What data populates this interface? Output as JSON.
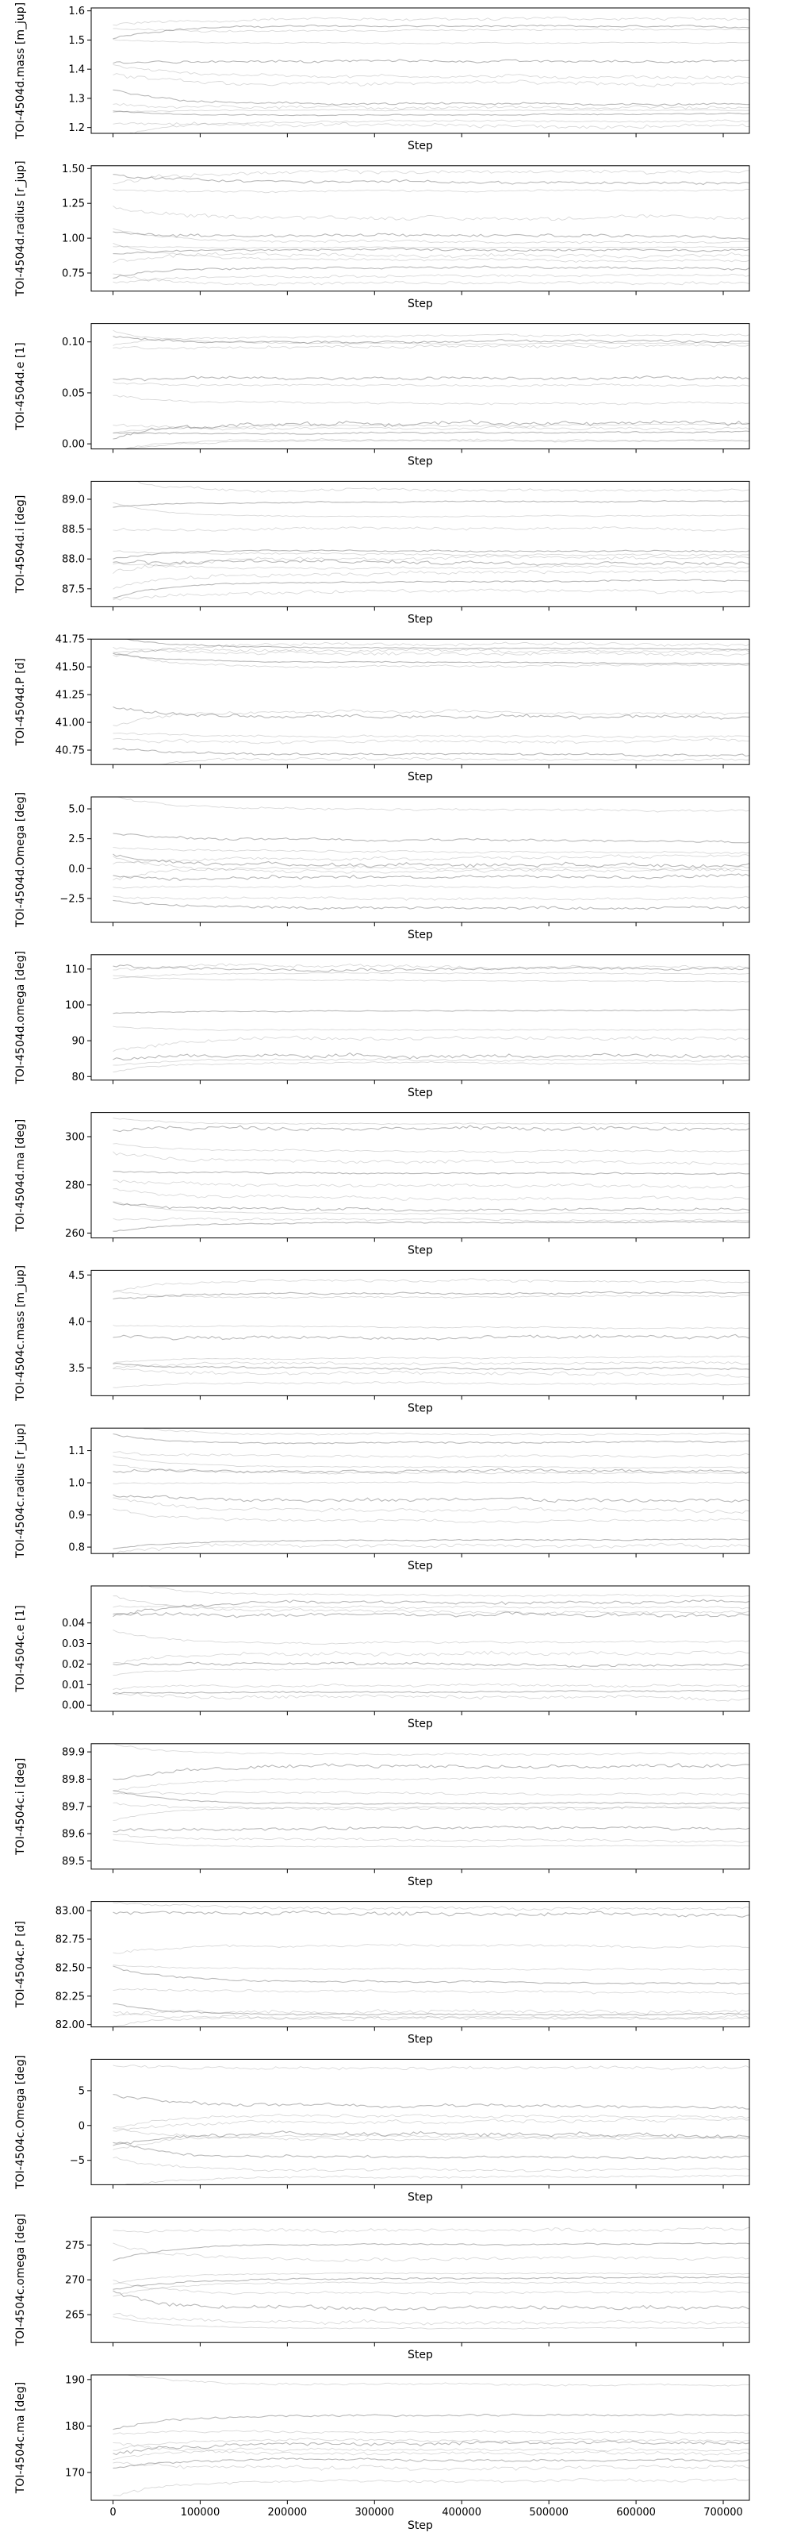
{
  "chart_data": {
    "type": "line",
    "style": {
      "trace_color": "#808080",
      "frame_color": "#000000",
      "background": "#ffffff"
    },
    "x_ticks": [
      0,
      100000,
      200000,
      300000,
      400000,
      500000,
      600000,
      700000
    ],
    "x_tick_labels": [
      "0",
      "100000",
      "200000",
      "300000",
      "400000",
      "500000",
      "600000",
      "700000"
    ],
    "xlim": [
      -25000,
      730000
    ],
    "panels": [
      {
        "ylabel": "TOI-4504d.mass [m_jup]",
        "xlabel": "Step",
        "ylim": [
          1.18,
          1.61
        ],
        "yticks": [
          1.2,
          1.3,
          1.4,
          1.5,
          1.6
        ],
        "ytick_labels": [
          "1.2",
          "1.3",
          "1.4",
          "1.5",
          "1.6"
        ],
        "levels": [
          1.57,
          1.55,
          1.53,
          1.49,
          1.43,
          1.38,
          1.35,
          1.28,
          1.27,
          1.26,
          1.24,
          1.22,
          1.21
        ]
      },
      {
        "ylabel": "TOI-4504d.radius [r_jup]",
        "xlabel": "Step",
        "ylim": [
          0.62,
          1.52
        ],
        "yticks": [
          0.75,
          1.0,
          1.25,
          1.5
        ],
        "ytick_labels": [
          "0.75",
          "1.00",
          "1.25",
          "1.50"
        ],
        "levels": [
          1.47,
          1.41,
          1.34,
          1.15,
          1.02,
          0.98,
          0.93,
          0.92,
          0.88,
          0.85,
          0.8,
          0.72,
          0.67
        ]
      },
      {
        "ylabel": "TOI-4504d.e [1]",
        "xlabel": "Step",
        "ylim": [
          -0.005,
          0.118
        ],
        "yticks": [
          0.0,
          0.05,
          0.1
        ],
        "ytick_labels": [
          "0.00",
          "0.05",
          "0.10"
        ],
        "levels": [
          0.105,
          0.1,
          0.098,
          0.095,
          0.065,
          0.058,
          0.04,
          0.02,
          0.017,
          0.015,
          0.01,
          0.005,
          0.002
        ]
      },
      {
        "ylabel": "TOI-4504d.i [deg]",
        "xlabel": "Step",
        "ylim": [
          87.2,
          89.3
        ],
        "yticks": [
          87.5,
          88.0,
          88.5,
          89.0
        ],
        "ytick_labels": [
          "87.5",
          "88.0",
          "88.5",
          "89.0"
        ],
        "levels": [
          89.15,
          88.95,
          88.7,
          88.5,
          88.15,
          88.1,
          88.0,
          87.95,
          87.85,
          87.75,
          87.6,
          87.45
        ]
      },
      {
        "ylabel": "TOI-4504d.P [d]",
        "xlabel": "Step",
        "ylim": [
          40.62,
          41.75
        ],
        "yticks": [
          40.75,
          41.0,
          41.25,
          41.5,
          41.75
        ],
        "ytick_labels": [
          "40.75",
          "41.00",
          "41.25",
          "41.50",
          "41.75"
        ],
        "levels": [
          41.7,
          41.68,
          41.65,
          41.62,
          41.55,
          41.5,
          41.1,
          41.05,
          40.88,
          40.82,
          40.72,
          40.68
        ]
      },
      {
        "ylabel": "TOI-4504d.Omega [deg]",
        "xlabel": "Step",
        "ylim": [
          -4.5,
          6
        ],
        "yticks": [
          -2.5,
          0.0,
          2.5,
          5.0
        ],
        "ytick_labels": [
          "−2.5",
          "0.0",
          "2.5",
          "5.0"
        ],
        "levels": [
          5.0,
          2.5,
          1.5,
          0.8,
          0.3,
          0.0,
          -0.3,
          -0.8,
          -1.5,
          -2.5,
          -3.3
        ]
      },
      {
        "ylabel": "TOI-4504d.omega [deg]",
        "xlabel": "Step",
        "ylim": [
          79,
          114
        ],
        "yticks": [
          80,
          90,
          100,
          110
        ],
        "ytick_labels": [
          "80",
          "90",
          "100",
          "110"
        ],
        "levels": [
          111,
          110,
          109,
          107,
          98,
          93,
          91,
          86,
          85,
          84
        ]
      },
      {
        "ylabel": "TOI-4504d.ma [deg]",
        "xlabel": "Step",
        "ylim": [
          258,
          310
        ],
        "yticks": [
          260,
          280,
          300
        ],
        "ytick_labels": [
          "260",
          "280",
          "300"
        ],
        "levels": [
          305,
          304,
          294,
          290,
          285,
          280,
          275,
          270,
          268,
          266,
          264
        ]
      },
      {
        "ylabel": "TOI-4504c.mass [m_jup]",
        "xlabel": "Step",
        "ylim": [
          3.2,
          4.55
        ],
        "yticks": [
          3.5,
          4.0,
          4.5
        ],
        "ytick_labels": [
          "3.5",
          "4.0",
          "4.5"
        ],
        "levels": [
          4.45,
          4.3,
          4.25,
          3.95,
          3.82,
          3.6,
          3.55,
          3.5,
          3.45,
          3.35
        ]
      },
      {
        "ylabel": "TOI-4504c.radius [r_jup]",
        "xlabel": "Step",
        "ylim": [
          0.78,
          1.17
        ],
        "yticks": [
          0.8,
          0.9,
          1.0,
          1.1
        ],
        "ytick_labels": [
          "0.8",
          "0.9",
          "1.0",
          "1.1"
        ],
        "levels": [
          1.15,
          1.12,
          1.08,
          1.05,
          1.04,
          1.03,
          1.0,
          0.95,
          0.92,
          0.88,
          0.82,
          0.81
        ]
      },
      {
        "ylabel": "TOI-4504c.e [1]",
        "xlabel": "Step",
        "ylim": [
          -0.003,
          0.058
        ],
        "yticks": [
          0.0,
          0.01,
          0.02,
          0.03,
          0.04
        ],
        "ytick_labels": [
          "0.00",
          "0.01",
          "0.02",
          "0.03",
          "0.04"
        ],
        "levels": [
          0.054,
          0.05,
          0.048,
          0.046,
          0.044,
          0.03,
          0.025,
          0.02,
          0.018,
          0.01,
          0.006,
          0.004
        ]
      },
      {
        "ylabel": "TOI-4504c.i [deg]",
        "xlabel": "Step",
        "ylim": [
          89.47,
          89.93
        ],
        "yticks": [
          89.5,
          89.6,
          89.7,
          89.8,
          89.9
        ],
        "ytick_labels": [
          "89.5",
          "89.6",
          "89.7",
          "89.8",
          "89.9"
        ],
        "levels": [
          89.89,
          89.85,
          89.8,
          89.75,
          89.71,
          89.7,
          89.69,
          89.62,
          89.58,
          89.55
        ]
      },
      {
        "ylabel": "TOI-4504c.P [d]",
        "xlabel": "Step",
        "ylim": [
          81.98,
          83.08
        ],
        "yticks": [
          82.0,
          82.25,
          82.5,
          82.75,
          83.0
        ],
        "ytick_labels": [
          "82.00",
          "82.25",
          "82.50",
          "82.75",
          "83.00"
        ],
        "levels": [
          83.02,
          82.98,
          82.7,
          82.5,
          82.38,
          82.3,
          82.12,
          82.09,
          82.07,
          82.05
        ]
      },
      {
        "ylabel": "TOI-4504c.Omega [deg]",
        "xlabel": "Step",
        "ylim": [
          -8.5,
          9.5
        ],
        "yticks": [
          -5,
          0,
          5
        ],
        "ytick_labels": [
          "−5",
          "0",
          "5"
        ],
        "levels": [
          8.0,
          3.0,
          1.5,
          0.5,
          -1.0,
          -1.5,
          -2.0,
          -4.5,
          -6.5,
          -7.5
        ]
      },
      {
        "ylabel": "TOI-4504c.omega [deg]",
        "xlabel": "Step",
        "ylim": [
          261,
          279
        ],
        "yticks": [
          265,
          270,
          275
        ],
        "ytick_labels": [
          "265",
          "270",
          "275"
        ],
        "levels": [
          277,
          275,
          273,
          271,
          270,
          269.5,
          268,
          266,
          264,
          263
        ]
      },
      {
        "ylabel": "TOI-4504c.ma [deg]",
        "xlabel": "Step",
        "ylim": [
          164,
          191
        ],
        "yticks": [
          170,
          180,
          190
        ],
        "ytick_labels": [
          "170",
          "180",
          "190"
        ],
        "levels": [
          189,
          182,
          179,
          177,
          176,
          175,
          174,
          173,
          171,
          168
        ]
      }
    ]
  }
}
